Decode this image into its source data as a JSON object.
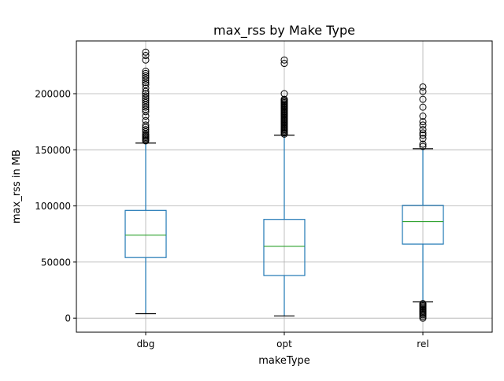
{
  "chart_data": {
    "type": "box",
    "title": "max_rss by Make Type",
    "xlabel": "makeType",
    "ylabel": "max_rss in MB",
    "categories": [
      "dbg",
      "opt",
      "rel"
    ],
    "ylim": [
      -12500,
      247000
    ],
    "yticks": [
      0,
      50000,
      100000,
      150000,
      200000
    ],
    "ytick_labels": [
      "0",
      "50000",
      "100000",
      "150000",
      "200000"
    ],
    "grid": true,
    "boxes": [
      {
        "category": "dbg",
        "whisker_low": 4000,
        "q1": 54000,
        "median": 74000,
        "q3": 96000,
        "whisker_high": 156000,
        "outliers": [
          158000,
          159000,
          160000,
          161000,
          162000,
          163000,
          164000,
          166000,
          168000,
          170000,
          172000,
          176000,
          180000,
          184000,
          186000,
          188000,
          190000,
          192000,
          194000,
          196000,
          198000,
          200000,
          202000,
          205000,
          208000,
          210000,
          212000,
          214000,
          216000,
          218000,
          220000,
          230000,
          234000,
          237000
        ]
      },
      {
        "category": "opt",
        "whisker_low": 2000,
        "q1": 38000,
        "median": 64000,
        "q3": 88000,
        "whisker_high": 163000,
        "outliers": [
          164000,
          165000,
          166000,
          167000,
          168000,
          169000,
          170000,
          171000,
          172000,
          173000,
          174000,
          175000,
          176000,
          177000,
          178000,
          179000,
          180000,
          181000,
          182000,
          183000,
          184000,
          185000,
          186000,
          187000,
          188000,
          189000,
          190000,
          191000,
          192000,
          193000,
          194000,
          195000,
          200000,
          227000,
          230000
        ]
      },
      {
        "category": "rel",
        "whisker_low": 14500,
        "q1": 66000,
        "median": 86000,
        "q3": 100500,
        "whisker_high": 151000,
        "outliers": [
          0,
          1500,
          3000,
          4000,
          5000,
          6000,
          7000,
          8000,
          9000,
          10000,
          11000,
          12000,
          13000,
          153000,
          155000,
          160000,
          163000,
          165000,
          168000,
          172000,
          175000,
          180000,
          188000,
          195000,
          202000,
          206000
        ]
      }
    ],
    "colors": {
      "box": "#1f77b4",
      "median": "#2ca02c",
      "whisker_cap": "#000000",
      "flier": "#000000",
      "grid": "#b0b0b0"
    }
  }
}
